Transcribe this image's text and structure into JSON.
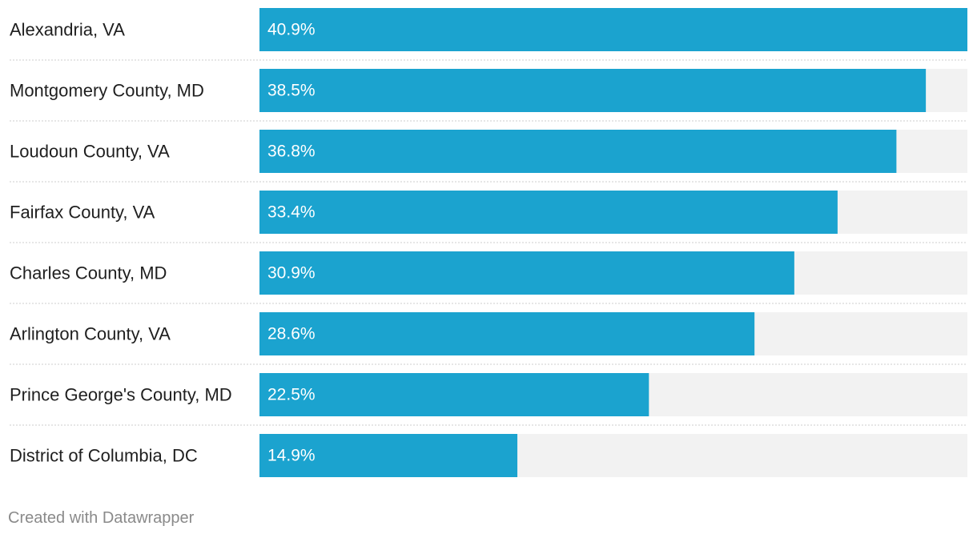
{
  "chart_data": {
    "type": "bar",
    "orientation": "horizontal",
    "categories": [
      "Alexandria, VA",
      "Montgomery County, MD",
      "Loudoun County, VA",
      "Fairfax County, VA",
      "Charles County, MD",
      "Arlington County, VA",
      "Prince George's County, MD",
      "District of Columbia, DC"
    ],
    "values": [
      40.9,
      38.5,
      36.8,
      33.4,
      30.9,
      28.6,
      22.5,
      14.9
    ],
    "value_labels": [
      "40.9%",
      "38.5%",
      "36.8%",
      "33.4%",
      "30.9%",
      "28.6%",
      "22.5%",
      "14.9%"
    ],
    "xlim": [
      0,
      40.9
    ],
    "title": "",
    "xlabel": "",
    "ylabel": "",
    "grid": false,
    "legend": "none",
    "colors": {
      "bar": "#1ba3cf",
      "track": "#f2f2f2",
      "separator": "#cccccc",
      "label": "#1f1f1f",
      "value_label": "#ffffff"
    }
  },
  "footer": {
    "credit": "Created with Datawrapper"
  }
}
